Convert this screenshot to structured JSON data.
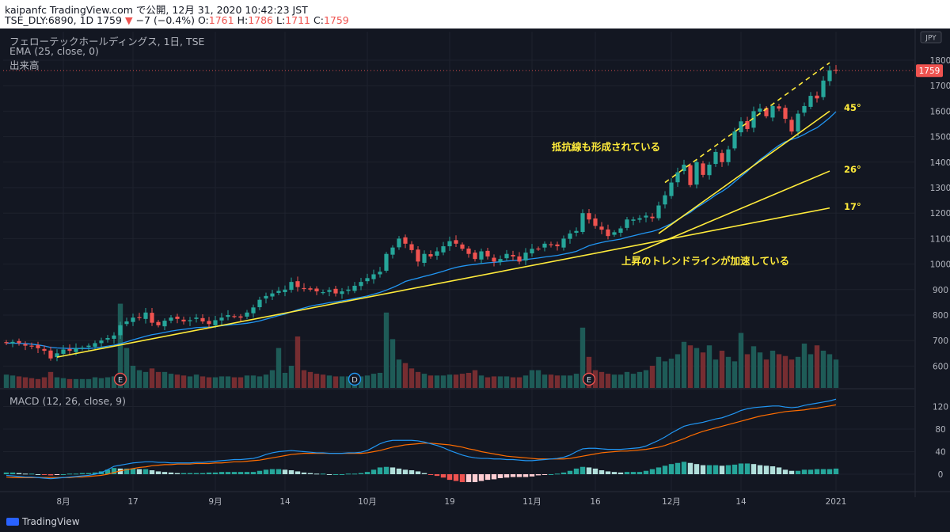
{
  "header": {
    "line1": "kaipanfc TradingView.com で公開, 12月 31, 2020 10:42:23 JST",
    "symbol": "TSE_DLY:6890, 1D 1759",
    "change_arrow": "▼",
    "change": "−7 (−0.4%)",
    "o_label": "O:",
    "o_value": "1761",
    "h_label": "H:",
    "h_value": "1786",
    "l_label": "L:",
    "l_value": "1711",
    "c_label": "C:",
    "c_value": "1759"
  },
  "legend": {
    "title": "フェローテックホールディングス, 1日, TSE",
    "ema": "EMA (25, close, 0)",
    "volume": "出来高",
    "macd": "MACD (12, 26, close, 9)"
  },
  "currency": "JPY",
  "last_price_label": "1759",
  "footer_brand": "TradingView",
  "colors": {
    "up": "#26a69a",
    "down": "#ef5350",
    "ema": "#2196f3",
    "macd_line": "#2196f3",
    "signal_line": "#ff6d00",
    "annotation": "#ffeb3b"
  },
  "chart_data": [
    {
      "type": "candlestick",
      "title": "フェローテックホールディングス, 1日, TSE",
      "ylim": [
        540,
        1840
      ],
      "y_ticks": [
        600,
        700,
        800,
        900,
        1000,
        1100,
        1200,
        1300,
        1400,
        1500,
        1600,
        1700,
        1800
      ],
      "x_ticks": [
        "8月",
        "17",
        "9月",
        "14",
        "10月",
        "19",
        "11月",
        "16",
        "12月",
        "14",
        "2021"
      ],
      "closes": [
        690,
        695,
        690,
        680,
        678,
        670,
        660,
        630,
        650,
        665,
        660,
        670,
        672,
        680,
        690,
        700,
        710,
        720,
        760,
        775,
        790,
        790,
        810,
        770,
        760,
        778,
        790,
        785,
        775,
        780,
        790,
        775,
        765,
        780,
        790,
        800,
        795,
        790,
        810,
        830,
        860,
        875,
        885,
        895,
        900,
        930,
        910,
        905,
        900,
        893,
        890,
        898,
        885,
        893,
        900,
        915,
        930,
        945,
        960,
        970,
        1040,
        1065,
        1100,
        1080,
        1055,
        1010,
        1040,
        1030,
        1050,
        1070,
        1090,
        1080,
        1060,
        1040,
        1020,
        1050,
        1030,
        1010,
        1020,
        1040,
        1030,
        1010,
        1045,
        1060,
        1060,
        1080,
        1075,
        1070,
        1100,
        1120,
        1130,
        1200,
        1175,
        1150,
        1135,
        1110,
        1125,
        1140,
        1175,
        1175,
        1180,
        1190,
        1180,
        1230,
        1270,
        1320,
        1360,
        1390,
        1310,
        1400,
        1350,
        1390,
        1440,
        1400,
        1450,
        1520,
        1560,
        1530,
        1600,
        1610,
        1580,
        1620,
        1610,
        1570,
        1520,
        1590,
        1620,
        1660,
        1650,
        1720,
        1760,
        1760
      ],
      "ema": [
        690,
        690,
        689,
        688,
        686,
        683,
        679,
        673,
        671,
        670,
        669,
        669,
        669,
        669,
        671,
        674,
        678,
        682,
        688,
        695,
        703,
        710,
        717,
        723,
        727,
        732,
        737,
        741,
        744,
        747,
        751,
        752,
        753,
        755,
        758,
        761,
        763,
        765,
        768,
        772,
        777,
        784,
        791,
        798,
        804,
        813,
        821,
        828,
        835,
        840,
        844,
        849,
        852,
        856,
        860,
        865,
        870,
        875,
        882,
        889,
        898,
        908,
        919,
        932,
        939,
        945,
        952,
        958,
        965,
        972,
        980,
        987,
        992,
        996,
        999,
        1002,
        1005,
        1007,
        1009,
        1012,
        1014,
        1015,
        1018,
        1021,
        1024,
        1028,
        1031,
        1034,
        1039,
        1044,
        1050,
        1061,
        1072,
        1079,
        1085,
        1090,
        1094,
        1098,
        1105,
        1111,
        1117,
        1123,
        1128,
        1136,
        1147,
        1159,
        1175,
        1189,
        1203,
        1222,
        1237,
        1253,
        1271,
        1285,
        1302,
        1323,
        1344,
        1364,
        1388,
        1410,
        1428,
        1448,
        1466,
        1480,
        1489,
        1497,
        1509,
        1523,
        1535,
        1554,
        1574,
        1598
      ],
      "volume_relative": [
        0.15,
        0.14,
        0.13,
        0.12,
        0.11,
        0.1,
        0.12,
        0.18,
        0.12,
        0.11,
        0.1,
        0.1,
        0.1,
        0.1,
        0.12,
        0.11,
        0.12,
        0.13,
        0.95,
        0.45,
        0.25,
        0.2,
        0.18,
        0.22,
        0.18,
        0.18,
        0.16,
        0.15,
        0.14,
        0.13,
        0.15,
        0.13,
        0.12,
        0.12,
        0.13,
        0.13,
        0.12,
        0.12,
        0.14,
        0.14,
        0.13,
        0.15,
        0.2,
        0.45,
        0.17,
        0.25,
        0.58,
        0.2,
        0.18,
        0.16,
        0.15,
        0.14,
        0.13,
        0.13,
        0.13,
        0.12,
        0.13,
        0.14,
        0.16,
        0.17,
        0.85,
        0.55,
        0.32,
        0.28,
        0.22,
        0.18,
        0.16,
        0.14,
        0.14,
        0.14,
        0.15,
        0.15,
        0.16,
        0.17,
        0.2,
        0.14,
        0.12,
        0.13,
        0.13,
        0.13,
        0.12,
        0.12,
        0.14,
        0.2,
        0.2,
        0.15,
        0.15,
        0.14,
        0.14,
        0.14,
        0.16,
        0.68,
        0.35,
        0.2,
        0.18,
        0.16,
        0.15,
        0.15,
        0.18,
        0.16,
        0.18,
        0.2,
        0.25,
        0.35,
        0.3,
        0.33,
        0.38,
        0.52,
        0.48,
        0.45,
        0.4,
        0.48,
        0.32,
        0.42,
        0.35,
        0.3,
        0.62,
        0.38,
        0.47,
        0.4,
        0.32,
        0.42,
        0.38,
        0.36,
        0.32,
        0.35,
        0.5,
        0.38,
        0.48,
        0.42,
        0.38,
        0.32
      ],
      "annotations": [
        {
          "text": "抵抗線も形成されている",
          "color": "#ffeb3b"
        },
        {
          "text": "上昇のトレンドラインが加速している",
          "color": "#ffeb3b"
        },
        {
          "text": "45°",
          "color": "#ffeb3b"
        },
        {
          "text": "26°",
          "color": "#ffeb3b"
        },
        {
          "text": "17°",
          "color": "#ffeb3b"
        }
      ],
      "earnings_markers": [
        "E",
        "D",
        "E"
      ],
      "trendlines": [
        {
          "label": "17°",
          "from": {
            "x": "2020-07-31",
            "y": 635
          },
          "to": {
            "x": "2020-12-29",
            "y": 1220
          }
        },
        {
          "label": "26°",
          "from": {
            "x": "2020-11-20",
            "y": 1040
          },
          "to": {
            "x": "2020-12-29",
            "y": 1365
          }
        },
        {
          "label": "45°",
          "from": {
            "x": "2020-11-26",
            "y": 1120
          },
          "to": {
            "x": "2020-12-29",
            "y": 1600
          }
        },
        {
          "label": "resistance",
          "dashed": true,
          "from": {
            "x": "2020-11-27",
            "y": 1320
          },
          "to": {
            "x": "2020-12-29",
            "y": 1790
          }
        }
      ]
    },
    {
      "type": "line",
      "title": "MACD (12, 26, close, 9)",
      "ylim": [
        -20,
        138
      ],
      "y_ticks": [
        0,
        40,
        80,
        120
      ],
      "series": [
        {
          "name": "MACD",
          "values": [
            -2,
            -3,
            -4,
            -5,
            -5,
            -6,
            -7,
            -8,
            -7,
            -6,
            -5,
            -4,
            -3,
            -2,
            0,
            3,
            8,
            14,
            16,
            18,
            20,
            21,
            22,
            22,
            21,
            21,
            20,
            20,
            20,
            20,
            21,
            21,
            22,
            23,
            24,
            25,
            26,
            26,
            27,
            28,
            31,
            35,
            38,
            40,
            41,
            42,
            41,
            40,
            39,
            38,
            38,
            37,
            37,
            37,
            38,
            38,
            39,
            42,
            48,
            54,
            58,
            60,
            60,
            60,
            60,
            59,
            57,
            54,
            51,
            47,
            42,
            38,
            34,
            31,
            29,
            28,
            28,
            27,
            27,
            26,
            26,
            25,
            24,
            24,
            25,
            26,
            27,
            28,
            30,
            34,
            40,
            45,
            46,
            46,
            45,
            44,
            44,
            44,
            45,
            46,
            47,
            50,
            55,
            60,
            66,
            73,
            79,
            85,
            88,
            90,
            92,
            95,
            98,
            100,
            104,
            108,
            113,
            116,
            118,
            119,
            120,
            121,
            121,
            119,
            118,
            119,
            122,
            124,
            126,
            128,
            130,
            133
          ]
        },
        {
          "name": "Signal",
          "values": [
            -5,
            -6,
            -6,
            -6,
            -6,
            -6,
            -6,
            -6,
            -6,
            -6,
            -6,
            -5,
            -5,
            -4,
            -3,
            -2,
            0,
            3,
            6,
            8,
            10,
            12,
            13,
            15,
            16,
            17,
            17,
            18,
            18,
            18,
            19,
            19,
            19,
            20,
            20,
            21,
            22,
            22,
            23,
            24,
            25,
            27,
            29,
            31,
            33,
            35,
            36,
            37,
            37,
            37,
            37,
            37,
            37,
            37,
            37,
            37,
            37,
            38,
            40,
            42,
            45,
            48,
            50,
            52,
            53,
            54,
            55,
            55,
            54,
            53,
            52,
            50,
            48,
            45,
            43,
            40,
            38,
            36,
            34,
            32,
            31,
            30,
            29,
            28,
            27,
            27,
            27,
            27,
            27,
            28,
            30,
            32,
            34,
            36,
            38,
            39,
            40,
            41,
            41,
            42,
            43,
            44,
            46,
            48,
            51,
            55,
            59,
            63,
            68,
            72,
            76,
            79,
            82,
            85,
            88,
            91,
            94,
            97,
            100,
            103,
            105,
            107,
            109,
            111,
            112,
            113,
            114,
            116,
            117,
            119,
            121,
            123
          ]
        }
      ]
    }
  ]
}
